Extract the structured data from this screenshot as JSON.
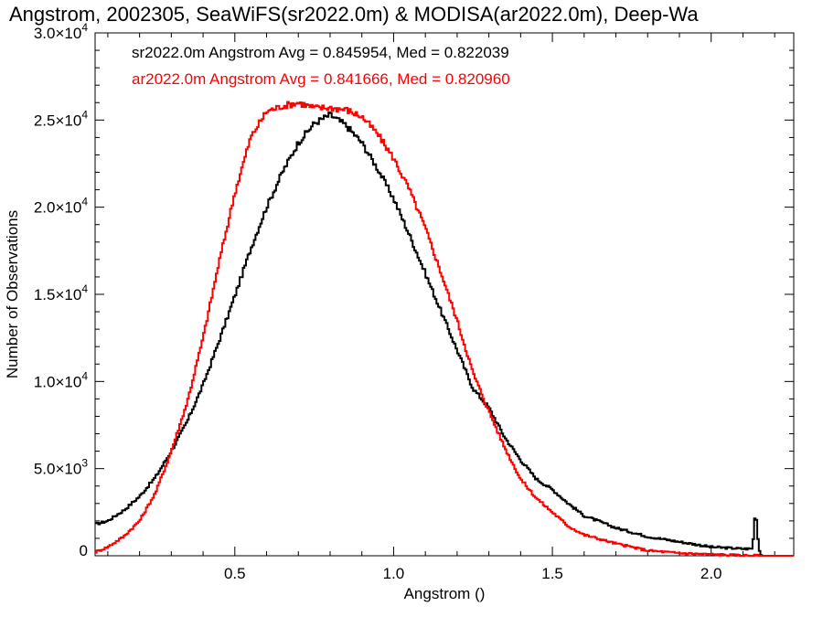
{
  "chart_data": {
    "type": "line",
    "step": true,
    "title": "Angstrom, 2002305, SeaWiFS(sr2022.0m) & MODISA(ar2022.0m), Deep-Wa",
    "xlabel": "Angstrom ()",
    "ylabel": "Number of Observations",
    "xlim": [
      0.06,
      2.26
    ],
    "ylim": [
      0,
      30000
    ],
    "xticks": [
      {
        "value": 0.5,
        "label": "0.5"
      },
      {
        "value": 1.0,
        "label": "1.0"
      },
      {
        "value": 1.5,
        "label": "1.5"
      },
      {
        "value": 2.0,
        "label": "2.0"
      }
    ],
    "yticks": [
      {
        "value": 0,
        "mant": "0",
        "exp": ""
      },
      {
        "value": 5000,
        "mant": "5.0×10",
        "exp": "3"
      },
      {
        "value": 10000,
        "mant": "1.0×10",
        "exp": "4"
      },
      {
        "value": 15000,
        "mant": "1.5×10",
        "exp": "4"
      },
      {
        "value": 20000,
        "mant": "2.0×10",
        "exp": "4"
      },
      {
        "value": 25000,
        "mant": "2.5×10",
        "exp": "4"
      },
      {
        "value": 30000,
        "mant": "3.0×10",
        "exp": "4"
      }
    ],
    "grid": false,
    "legend_position": "top-left",
    "series": [
      {
        "name": "sr2022.0m",
        "legend": "sr2022.0m Angstrom Avg = 0.845954, Med = 0.822039",
        "color": "#000000",
        "x": [
          0.06,
          0.1,
          0.15,
          0.2,
          0.25,
          0.3,
          0.35,
          0.4,
          0.45,
          0.5,
          0.55,
          0.6,
          0.65,
          0.7,
          0.75,
          0.8,
          0.85,
          0.9,
          0.95,
          1.0,
          1.05,
          1.1,
          1.15,
          1.2,
          1.25,
          1.3,
          1.35,
          1.4,
          1.45,
          1.5,
          1.55,
          1.6,
          1.7,
          1.8,
          1.9,
          2.0,
          2.1,
          2.13,
          2.14,
          2.15,
          2.16
        ],
        "y": [
          1800,
          2000,
          2600,
          3400,
          4500,
          6000,
          7700,
          9800,
          12300,
          14900,
          17600,
          20000,
          22000,
          23700,
          24800,
          25300,
          24700,
          23700,
          22200,
          20500,
          18400,
          16200,
          14000,
          11800,
          9600,
          8500,
          6800,
          5500,
          4400,
          3800,
          3000,
          2300,
          1600,
          1100,
          800,
          500,
          400,
          400,
          2700,
          400,
          0
        ]
      },
      {
        "name": "ar2022.0m",
        "legend": "ar2022.0m Angstrom Avg = 0.841666, Med = 0.820960",
        "color": "#ff0000",
        "x": [
          0.06,
          0.1,
          0.15,
          0.2,
          0.25,
          0.3,
          0.35,
          0.4,
          0.45,
          0.5,
          0.55,
          0.6,
          0.65,
          0.7,
          0.75,
          0.8,
          0.85,
          0.9,
          0.95,
          1.0,
          1.05,
          1.1,
          1.15,
          1.2,
          1.25,
          1.3,
          1.35,
          1.4,
          1.45,
          1.5,
          1.55,
          1.6,
          1.7,
          1.8,
          1.9,
          2.0,
          2.1,
          2.16
        ],
        "y": [
          200,
          500,
          1100,
          2000,
          3600,
          6000,
          8800,
          12500,
          16800,
          20800,
          24000,
          25500,
          25800,
          26000,
          25700,
          25700,
          25600,
          25200,
          24200,
          22800,
          21000,
          18800,
          16200,
          13500,
          10500,
          8300,
          6200,
          4400,
          3300,
          2500,
          1700,
          1200,
          700,
          300,
          150,
          80,
          20,
          0
        ]
      }
    ]
  }
}
